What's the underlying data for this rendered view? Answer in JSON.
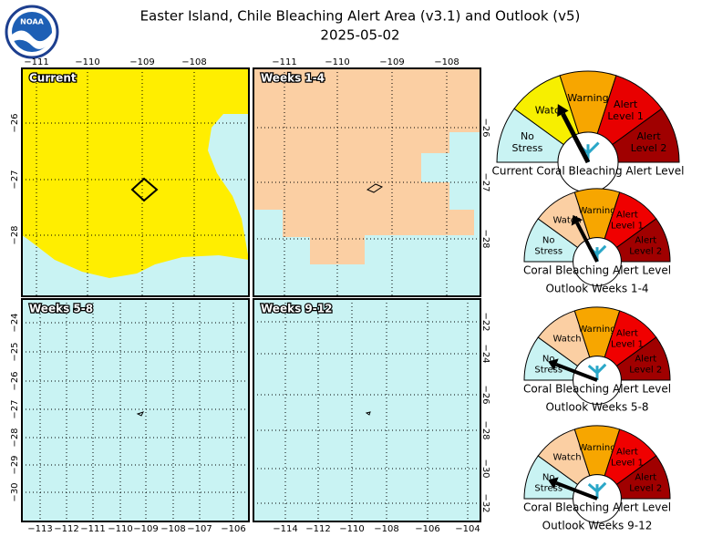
{
  "header": {
    "title": "Easter Island, Chile Bleaching Alert Area (v3.1) and Outlook (v5)",
    "date": "2025-05-02"
  },
  "maps": [
    {
      "label": "Current",
      "top_ticks": [
        "−111",
        "−110",
        "−109",
        "−108"
      ],
      "left_ticks": [
        "−26",
        "−27",
        "−28"
      ]
    },
    {
      "label": "Weeks 1-4",
      "top_ticks": [
        "−111",
        "−110",
        "−109",
        "−108"
      ],
      "right_ticks": [
        "−26",
        "−27",
        "−28"
      ]
    },
    {
      "label": "Weeks 5-8",
      "left_ticks": [
        "−24",
        "−25",
        "−26",
        "−27",
        "−28",
        "−29",
        "−30"
      ],
      "bottom_ticks": [
        "−113",
        "−112",
        "−111",
        "−110",
        "−109",
        "−108",
        "−107",
        "−106"
      ]
    },
    {
      "label": "Weeks 9-12",
      "right_ticks": [
        "−22",
        "−24",
        "−26",
        "−28",
        "−30",
        "−32"
      ],
      "bottom_ticks": [
        "−114",
        "−112",
        "−110",
        "−108",
        "−106",
        "−104"
      ]
    }
  ],
  "gauges": [
    {
      "levels": [
        [
          "No",
          "Stress"
        ],
        [
          "Watch"
        ],
        [
          "Warning"
        ],
        [
          "Alert",
          "Level 1"
        ],
        [
          "Alert",
          "Level 2"
        ]
      ],
      "caption": [
        "Current Coral Bleaching Alert Level"
      ]
    },
    {
      "levels": [
        [
          "No",
          "Stress"
        ],
        [
          "Watch"
        ],
        [
          "Warning"
        ],
        [
          "Alert",
          "Level 1"
        ],
        [
          "Alert",
          "Level 2"
        ]
      ],
      "caption": [
        "Coral Bleaching Alert Level",
        "Outlook Weeks 1-4"
      ]
    },
    {
      "levels": [
        [
          "No",
          "Stress"
        ],
        [
          "Watch"
        ],
        [
          "Warning"
        ],
        [
          "Alert",
          "Level 1"
        ],
        [
          "Alert",
          "Level 2"
        ]
      ],
      "caption": [
        "Coral Bleaching Alert Level",
        "Outlook Weeks 5-8"
      ]
    },
    {
      "levels": [
        [
          "No",
          "Stress"
        ],
        [
          "Watch"
        ],
        [
          "Warning"
        ],
        [
          "Alert",
          "Level 1"
        ],
        [
          "Alert",
          "Level 2"
        ]
      ],
      "caption": [
        "Coral Bleaching Alert Level",
        "Outlook Weeks 9-12"
      ]
    }
  ]
}
